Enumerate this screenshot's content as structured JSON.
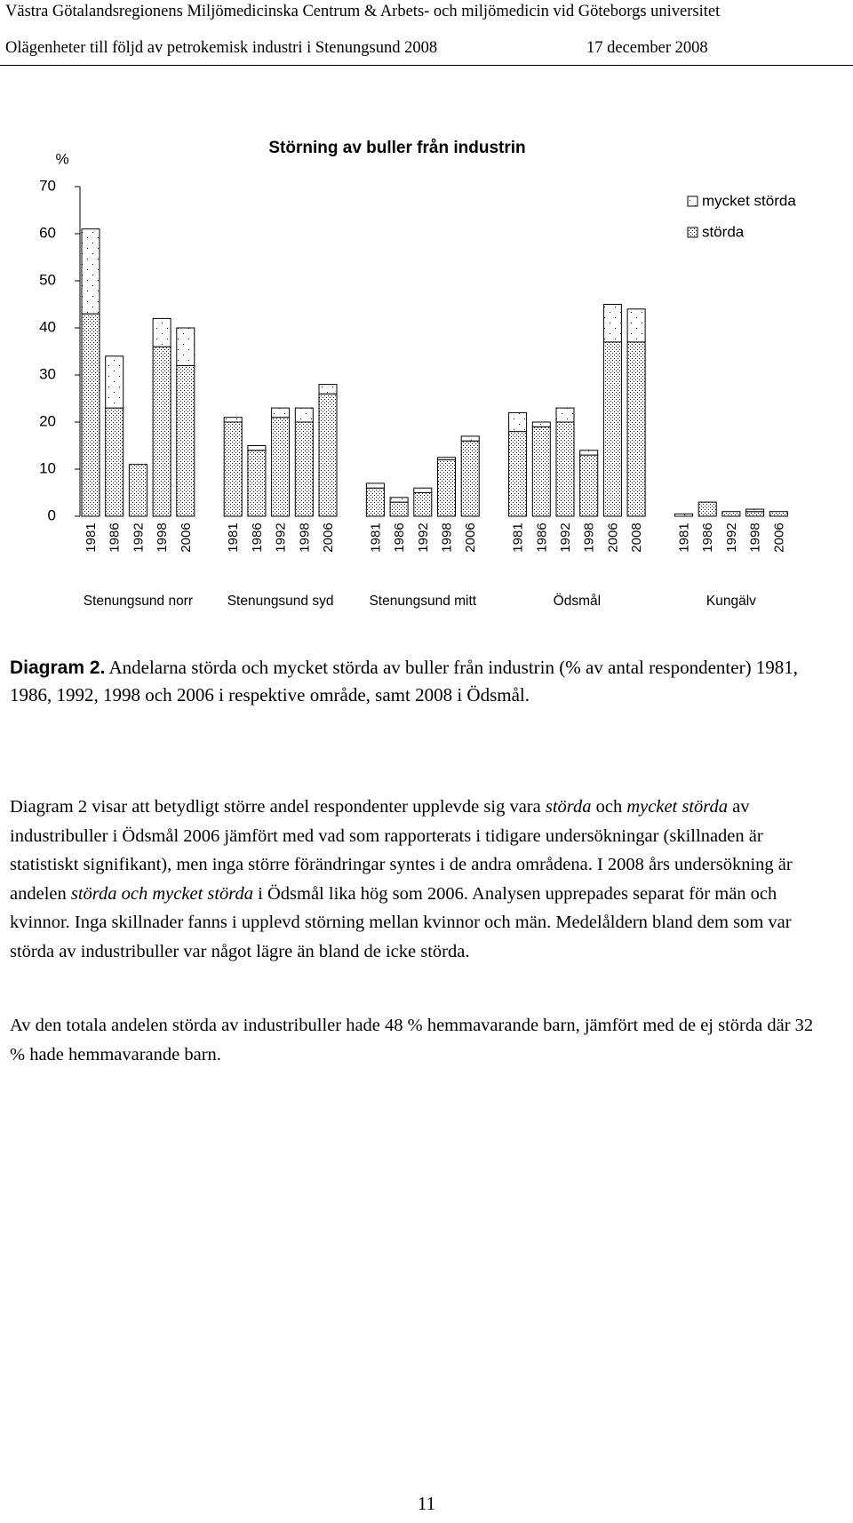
{
  "header": {
    "organization": "Västra Götalandsregionens Miljömedicinska Centrum & Arbets- och miljömedicin vid Göteborgs universitet",
    "report": "Olägenheter till följd av petrokemisk industri i Stenungsund 2008",
    "date": "17 december 2008"
  },
  "chart_data": {
    "type": "stacked-bar",
    "title": "Störning av buller från industrin",
    "y_label": "%",
    "groups": [
      {
        "label": "Stenungsund norr",
        "categories": [
          "1981",
          "1986",
          "1992",
          "1998",
          "2006"
        ]
      },
      {
        "label": "Stenungsund syd",
        "categories": [
          "1981",
          "1986",
          "1992",
          "1998",
          "2006"
        ]
      },
      {
        "label": "Stenungsund mitt",
        "categories": [
          "1981",
          "1986",
          "1992",
          "1998",
          "2006"
        ]
      },
      {
        "label": "Ödsmål",
        "categories": [
          "1981",
          "1986",
          "1992",
          "1998",
          "2006",
          "2008"
        ]
      },
      {
        "label": "Kungälv",
        "categories": [
          "1981",
          "1986",
          "1992",
          "1998",
          "2006"
        ]
      }
    ],
    "series": [
      {
        "name": "mycket störda",
        "color": "#000000",
        "pattern": "sparse",
        "values": [
          18,
          11,
          0,
          6,
          8,
          1,
          1,
          2,
          3,
          2,
          1,
          1,
          1,
          0.5,
          1,
          4,
          1,
          3,
          1,
          8,
          7,
          0.5,
          0,
          0,
          0.5,
          0
        ]
      },
      {
        "name": "störda",
        "color": "#000000",
        "pattern": "dense",
        "values": [
          43,
          23,
          11,
          36,
          32,
          20,
          14,
          21,
          20,
          26,
          6,
          3,
          5,
          12,
          16,
          18,
          19,
          20,
          13,
          37,
          37,
          0,
          3,
          1,
          1,
          1
        ]
      }
    ],
    "ylim": [
      0,
      70
    ],
    "yticks": [
      0,
      10,
      20,
      30,
      40,
      50,
      60,
      70
    ],
    "grid": false,
    "legend": "top-right"
  },
  "caption": {
    "label": "Diagram 2.",
    "text": "Andelarna störda och mycket störda av buller från industrin (% av antal respondenter) 1981, 1986, 1992, 1998 och 2006 i respektive område, samt 2008 i Ödsmål."
  },
  "paragraphs": [
    [
      {
        "text": "Diagram 2 visar att betydligt större andel respondenter upplevde sig vara ",
        "italic": false
      },
      {
        "text": "störda",
        "italic": true
      },
      {
        "text": " och ",
        "italic": false
      },
      {
        "text": "mycket störda",
        "italic": true
      },
      {
        "text": " av industribuller i Ödsmål 2006 jämfört med vad som rapporterats i tidigare undersökningar (skillnaden är statistiskt signifikant), men inga större förändringar syntes i de andra områdena. I 2008 års undersökning är andelen ",
        "italic": false
      },
      {
        "text": "störda och mycket störda",
        "italic": true
      },
      {
        "text": " i Ödsmål lika hög som 2006. Analysen upprepades separat för män och kvinnor. Inga skillnader fanns i upplevd störning mellan kvinnor och män. Medelåldern bland dem som var störda av industribuller var något lägre än bland de icke störda.",
        "italic": false
      }
    ],
    [
      {
        "text": "Av den totala andelen störda av industribuller hade 48 % hemmavarande barn, jämfört med de ej störda där 32 % hade hemmavarande barn.",
        "italic": false
      }
    ]
  ],
  "page_number": "11"
}
